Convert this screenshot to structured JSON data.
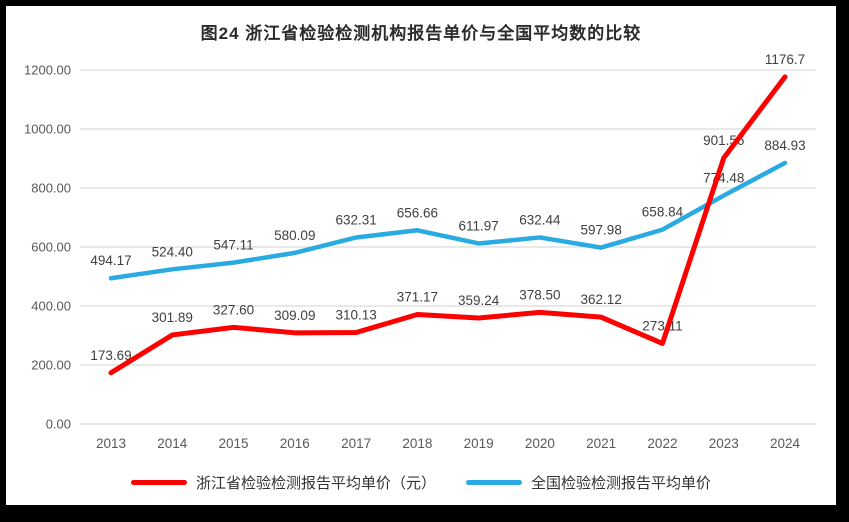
{
  "title": "图24  浙江省检验检测机构报告单价与全国平均数的比较",
  "colors": {
    "zhejiang_line": "#fe0000",
    "national_line": "#29abe2",
    "gridline": "#d9d9d9",
    "axis_text": "#595959",
    "data_label_text": "#404040",
    "frame_border": "#000000",
    "page_background": "#ffffff"
  },
  "chart_data": {
    "type": "line",
    "categories": [
      "2013",
      "2014",
      "2015",
      "2016",
      "2017",
      "2018",
      "2019",
      "2020",
      "2021",
      "2022",
      "2023",
      "2024"
    ],
    "series": [
      {
        "name": "浙江省检验检测报告平均单价（元）",
        "color": "#fe0000",
        "values": [
          173.69,
          301.89,
          327.6,
          309.09,
          310.13,
          371.17,
          359.24,
          378.5,
          362.12,
          273.11,
          901.56,
          1176.7
        ],
        "labels": [
          "173.69",
          "301.89",
          "327.60",
          "309.09",
          "310.13",
          "371.17",
          "359.24",
          "378.50",
          "362.12",
          "273.11",
          "901.56",
          "1176.7"
        ]
      },
      {
        "name": "全国检验检测报告平均单价",
        "color": "#29abe2",
        "values": [
          494.17,
          524.4,
          547.11,
          580.09,
          632.31,
          656.66,
          611.97,
          632.44,
          597.98,
          658.84,
          774.48,
          884.93
        ],
        "labels": [
          "494.17",
          "524.40",
          "547.11",
          "580.09",
          "632.31",
          "656.66",
          "611.97",
          "632.44",
          "597.98",
          "658.84",
          "774.48",
          "884.93"
        ]
      }
    ],
    "ylim": [
      0,
      1200
    ],
    "ytick_step": 200,
    "ytick_labels": [
      "0.00",
      "200.00",
      "400.00",
      "600.00",
      "800.00",
      "1000.00",
      "1200.00"
    ],
    "grid": true,
    "legend_position": "bottom"
  }
}
